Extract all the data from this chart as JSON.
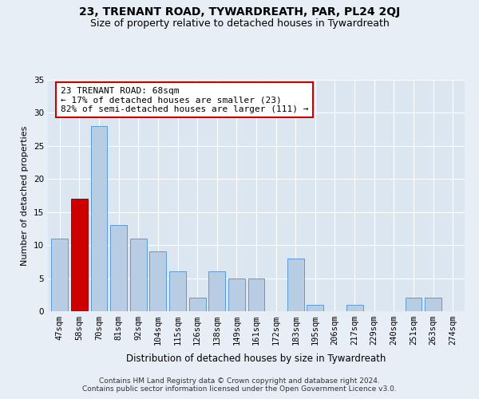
{
  "title": "23, TRENANT ROAD, TYWARDREATH, PAR, PL24 2QJ",
  "subtitle": "Size of property relative to detached houses in Tywardreath",
  "xlabel": "Distribution of detached houses by size in Tywardreath",
  "ylabel": "Number of detached properties",
  "categories": [
    "47sqm",
    "58sqm",
    "70sqm",
    "81sqm",
    "92sqm",
    "104sqm",
    "115sqm",
    "126sqm",
    "138sqm",
    "149sqm",
    "161sqm",
    "172sqm",
    "183sqm",
    "195sqm",
    "206sqm",
    "217sqm",
    "229sqm",
    "240sqm",
    "251sqm",
    "263sqm",
    "274sqm"
  ],
  "values": [
    11,
    17,
    28,
    13,
    11,
    9,
    6,
    2,
    6,
    5,
    5,
    0,
    8,
    1,
    0,
    1,
    0,
    0,
    2,
    2,
    0
  ],
  "bar_color": "#b8cce4",
  "bar_edge_color": "#5b9bd5",
  "highlight_bar_index": 1,
  "highlight_bar_color": "#cc0000",
  "highlight_bar_edge_color": "#aa0000",
  "annotation_text": "23 TRENANT ROAD: 68sqm\n← 17% of detached houses are smaller (23)\n82% of semi-detached houses are larger (111) →",
  "annotation_box_color": "#ffffff",
  "annotation_box_edge_color": "#cc0000",
  "ylim": [
    0,
    35
  ],
  "yticks": [
    0,
    5,
    10,
    15,
    20,
    25,
    30,
    35
  ],
  "bg_color": "#e8eef5",
  "plot_bg_color": "#dce6f1",
  "footer_text": "Contains HM Land Registry data © Crown copyright and database right 2024.\nContains public sector information licensed under the Open Government Licence v3.0.",
  "title_fontsize": 10,
  "subtitle_fontsize": 9,
  "xlabel_fontsize": 8.5,
  "ylabel_fontsize": 8,
  "tick_fontsize": 7.5,
  "annotation_fontsize": 8,
  "footer_fontsize": 6.5
}
